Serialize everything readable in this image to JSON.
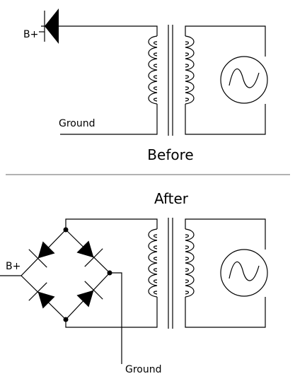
{
  "before": {
    "title": "Before",
    "input_label": "B+",
    "ground_label": "Ground"
  },
  "after": {
    "title": "After",
    "input_label": "B+",
    "ground_label": "Ground"
  }
}
